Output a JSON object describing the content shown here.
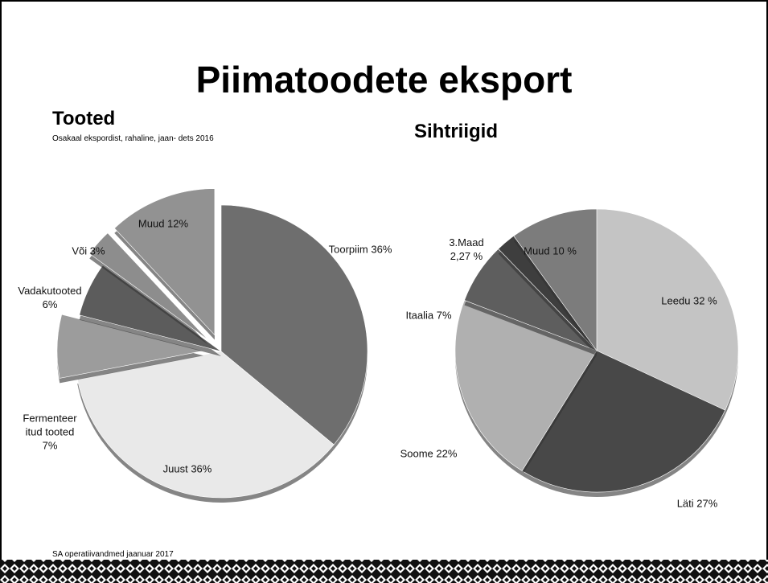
{
  "slide": {
    "title": "Piimatoodete eksport",
    "source": "SA operatiivandmed jaanuar 2017"
  },
  "chart_data": [
    {
      "type": "pie",
      "title": "Tooted",
      "subtitle": "Osakaal ekspordist, rahaline, jaan- dets 2016",
      "values": [
        36,
        36,
        7,
        6,
        3,
        12
      ],
      "value_labels": [
        "Toorpiim 36%",
        "Juust 36%",
        "Fermenteer\nitud tooted\n7%",
        "Vadakutooted\n6%",
        "Või 3%",
        "Muud 12%"
      ],
      "colors": [
        "#6e6e6e",
        "#e9e9e9",
        "#9c9c9c",
        "#5c5c5c",
        "#8d8d8d",
        "#929292"
      ],
      "exploded": [
        false,
        false,
        true,
        false,
        true,
        true
      ]
    },
    {
      "type": "pie",
      "title": "Sihtriigid",
      "values": [
        32,
        27,
        22,
        7,
        2.27,
        10
      ],
      "value_labels": [
        "Leedu 32 %",
        "Läti 27%",
        "Soome 22%",
        "Itaalia 7%",
        "3.Maad\n2,27 %",
        "Muud 10 %"
      ],
      "colors": [
        "#c4c4c4",
        "#484848",
        "#b0b0b0",
        "#5e5e5e",
        "#3e3e3e",
        "#7c7c7c"
      ],
      "exploded": [
        false,
        false,
        false,
        false,
        false,
        false
      ]
    }
  ]
}
